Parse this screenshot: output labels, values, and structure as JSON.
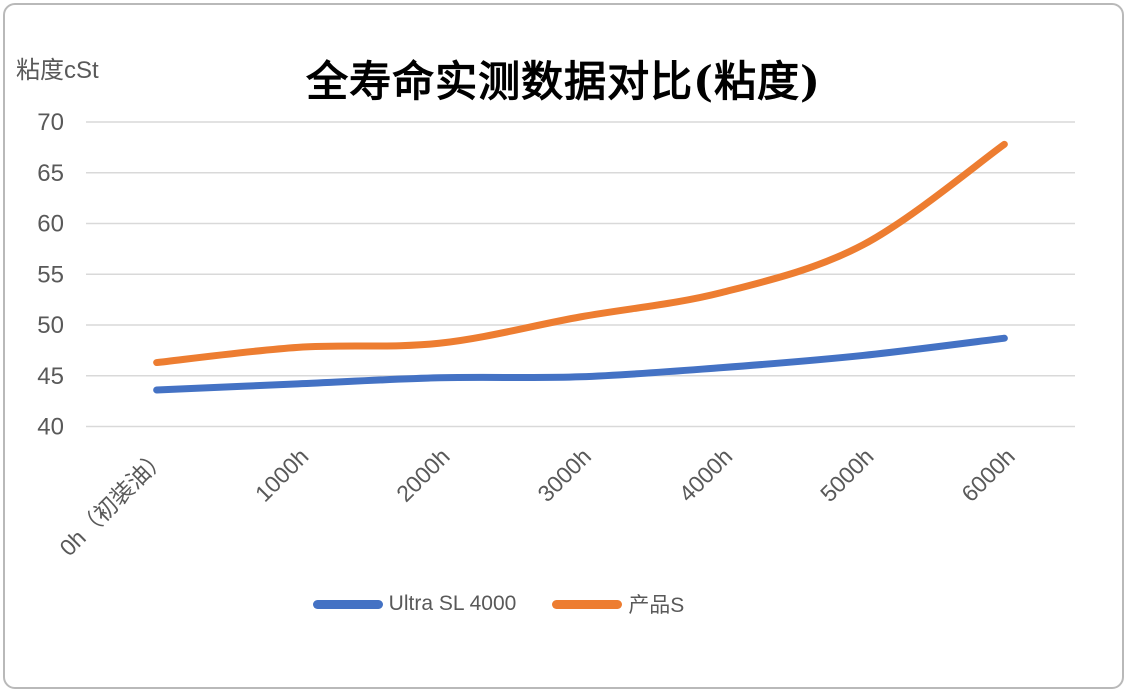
{
  "chart_data": {
    "type": "line",
    "title": "全寿命实测数据对比(粘度)",
    "ylabel": "粘度cSt",
    "xlabel": "",
    "categories": [
      "0h（初装油）",
      "1000h",
      "2000h",
      "3000h",
      "4000h",
      "5000h",
      "6000h"
    ],
    "series": [
      {
        "name": "Ultra SL 4000",
        "color": "#4472C4",
        "values": [
          43.6,
          44.2,
          44.8,
          44.9,
          45.8,
          47.0,
          48.7
        ]
      },
      {
        "name": "产品S",
        "color": "#ED7D31",
        "values": [
          46.3,
          47.8,
          48.2,
          50.8,
          53.2,
          57.9,
          67.8
        ]
      }
    ],
    "ylim": [
      40,
      70
    ],
    "yticks": [
      70,
      65,
      60,
      55,
      50,
      45,
      40
    ],
    "grid": true,
    "gridline_color": "#D9D9D9",
    "tick_label_color": "#595959",
    "x_label_rotation": 45,
    "smooth": true,
    "line_width": 7,
    "legend_position": "bottom"
  }
}
